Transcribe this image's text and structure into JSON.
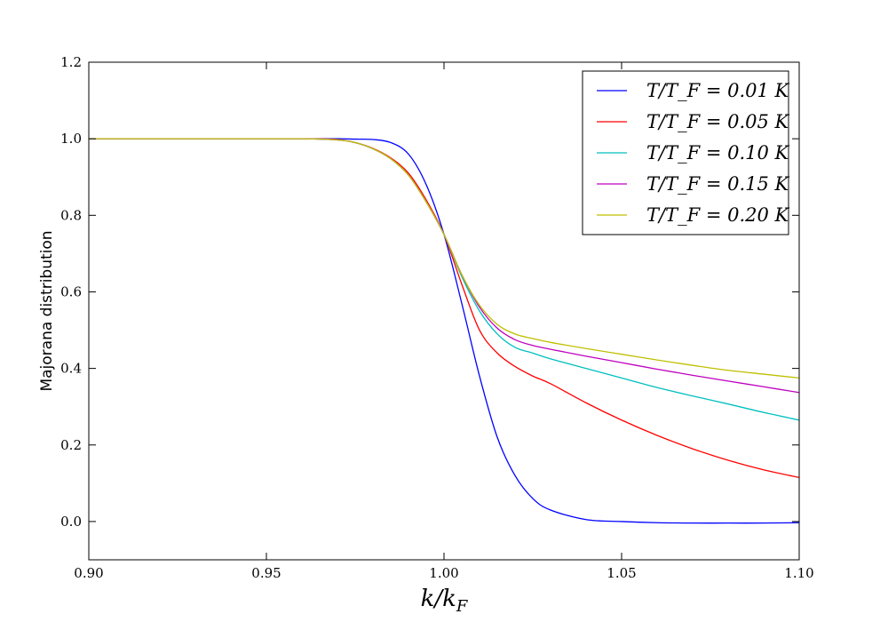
{
  "chart_data": {
    "type": "line",
    "title": "",
    "xlabel": "k/k_F",
    "ylabel": "Majorana distribution",
    "xlim": [
      0.9,
      1.1
    ],
    "ylim": [
      -0.1,
      1.2
    ],
    "xticks": [
      "0.90",
      "0.95",
      "1.00",
      "1.05",
      "1.10"
    ],
    "yticks": [
      "0.0",
      "0.2",
      "0.4",
      "0.6",
      "0.8",
      "1.0",
      "1.2"
    ],
    "grid": false,
    "legend_position": "top-right",
    "x": [
      0.9,
      0.92,
      0.94,
      0.96,
      0.97,
      0.975,
      0.98,
      0.985,
      0.99,
      0.995,
      1.0,
      1.005,
      1.01,
      1.015,
      1.02,
      1.025,
      1.03,
      1.04,
      1.05,
      1.06,
      1.07,
      1.08,
      1.09,
      1.1
    ],
    "series": [
      {
        "name": "T/T_F = 0.01 K",
        "color": "#0000ff",
        "values": [
          1.0,
          1.0,
          1.0,
          1.0,
          1.0,
          0.999,
          0.998,
          0.99,
          0.96,
          0.88,
          0.75,
          0.57,
          0.38,
          0.22,
          0.12,
          0.06,
          0.03,
          0.005,
          0.0,
          -0.003,
          -0.004,
          -0.004,
          -0.004,
          -0.003
        ]
      },
      {
        "name": "T/T_F = 0.05 K",
        "color": "#ff0000",
        "values": [
          1.0,
          1.0,
          1.0,
          1.0,
          0.998,
          0.99,
          0.975,
          0.95,
          0.91,
          0.84,
          0.75,
          0.62,
          0.5,
          0.44,
          0.405,
          0.38,
          0.36,
          0.31,
          0.265,
          0.225,
          0.19,
          0.16,
          0.135,
          0.115
        ]
      },
      {
        "name": "T/T_F = 0.10 K",
        "color": "#00bfbf",
        "values": [
          1.0,
          1.0,
          1.0,
          1.0,
          0.997,
          0.99,
          0.974,
          0.948,
          0.905,
          0.835,
          0.75,
          0.64,
          0.55,
          0.49,
          0.455,
          0.44,
          0.425,
          0.4,
          0.375,
          0.35,
          0.328,
          0.307,
          0.285,
          0.265
        ]
      },
      {
        "name": "T/T_F = 0.15 K",
        "color": "#bf00bf",
        "values": [
          1.0,
          1.0,
          1.0,
          1.0,
          0.997,
          0.99,
          0.974,
          0.948,
          0.905,
          0.835,
          0.75,
          0.645,
          0.56,
          0.505,
          0.475,
          0.46,
          0.45,
          0.432,
          0.415,
          0.398,
          0.382,
          0.367,
          0.352,
          0.337
        ]
      },
      {
        "name": "T/T_F = 0.20 K",
        "color": "#bfbf00",
        "values": [
          1.0,
          1.0,
          1.0,
          1.0,
          0.997,
          0.99,
          0.974,
          0.948,
          0.905,
          0.835,
          0.75,
          0.645,
          0.565,
          0.515,
          0.49,
          0.478,
          0.468,
          0.452,
          0.437,
          0.422,
          0.408,
          0.395,
          0.385,
          0.375
        ]
      }
    ]
  }
}
